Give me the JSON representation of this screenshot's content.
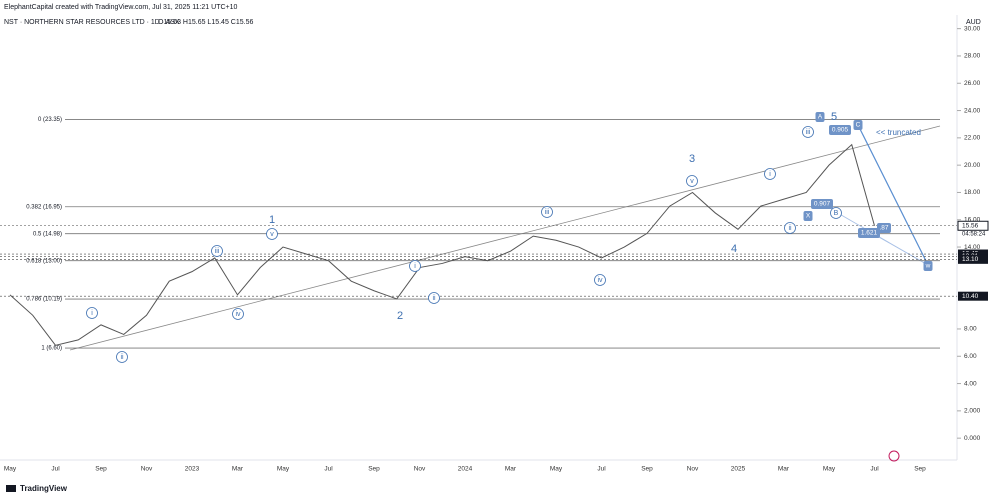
{
  "chart_data": {
    "type": "line",
    "credit": "ElephantCapital created with TradingView.com, Jul 31, 2025 11:21 UTC+10",
    "title": "NST · NORTHERN STAR RESOURCES LTD · 1D · ASX",
    "ohlc": "O15.63 H15.65 L15.45 C15.56",
    "currency": "AUD",
    "logo": "TradingView",
    "countdown": "04:58:24",
    "categories": [
      "May",
      null,
      "Jul",
      null,
      "Sep",
      null,
      "Nov",
      null,
      "2023",
      null,
      "Mar",
      null,
      "May",
      null,
      "Jul",
      null,
      "Sep",
      null,
      "Nov",
      null,
      "2024",
      null,
      "Mar",
      null,
      "May",
      null,
      "Jul",
      null,
      "Sep",
      null,
      "Nov",
      null,
      "2025",
      null,
      "Mar",
      null,
      "May",
      null,
      "Jul",
      null,
      "Sep"
    ],
    "series": [
      {
        "name": "NST",
        "color": "#555555",
        "values": [
          10.5,
          9.0,
          6.8,
          7.2,
          8.3,
          7.6,
          9.0,
          11.5,
          12.2,
          13.2,
          10.5,
          12.5,
          14.0,
          13.5,
          13.0,
          11.5,
          10.8,
          10.2,
          12.5,
          12.8,
          13.3,
          13.0,
          13.7,
          14.8,
          14.5,
          14.0,
          13.2,
          14.0,
          15.0,
          17.0,
          18.0,
          16.5,
          15.3,
          17.0,
          17.5,
          18.0,
          20.0,
          21.5,
          15.56,
          null,
          null
        ]
      }
    ],
    "ylim": [
      -1.6,
      31.0
    ],
    "yticks": [
      {
        "value": 0,
        "label": "0.000"
      },
      {
        "value": 2,
        "label": "2.000"
      },
      {
        "value": 4,
        "label": "4.00"
      },
      {
        "value": 6,
        "label": "6.00"
      },
      {
        "value": 8,
        "label": "8.00"
      },
      {
        "value": 14,
        "label": "14.00"
      },
      {
        "value": 16,
        "label": "16.00"
      },
      {
        "value": 18,
        "label": "18.00"
      },
      {
        "value": 20,
        "label": "20.00"
      },
      {
        "value": 22,
        "label": "22.00"
      },
      {
        "value": 24,
        "label": "24.00"
      },
      {
        "value": 26,
        "label": "26.00"
      },
      {
        "value": 28,
        "label": "28.00"
      },
      {
        "value": 30,
        "label": "30.00"
      }
    ],
    "fib_levels": [
      {
        "value": 23.35,
        "label": "0 (23.35)"
      },
      {
        "value": 16.95,
        "label": "0.382 (16.95)"
      },
      {
        "value": 14.98,
        "label": "0.5 (14.98)"
      },
      {
        "value": 13.0,
        "label": "0.618 (13.00)"
      },
      {
        "value": 10.19,
        "label": "0.786 (10.19)"
      },
      {
        "value": 6.6,
        "label": "1 (6.60)"
      }
    ],
    "price_tags": [
      {
        "value": 15.56,
        "label": "15.56"
      },
      {
        "value": 13.49,
        "label": "13.49"
      },
      {
        "value": 13.31,
        "label": "13.31"
      },
      {
        "value": 13.1,
        "label": "13.10"
      },
      {
        "value": 10.4,
        "label": "10.40"
      }
    ],
    "wave_labels": [
      "1",
      "2",
      "3",
      "4",
      "5"
    ],
    "circle_labels": [
      "i",
      "ii",
      "iii",
      "iv",
      "v",
      "i",
      "ii",
      "iii",
      "iv",
      "v",
      "i",
      "ii",
      "iii",
      "B"
    ],
    "box_labels": [
      "A",
      "0.905",
      "C",
      "X",
      "0.907",
      "1.621",
      ".87",
      "w"
    ],
    "note": "<< truncated"
  }
}
